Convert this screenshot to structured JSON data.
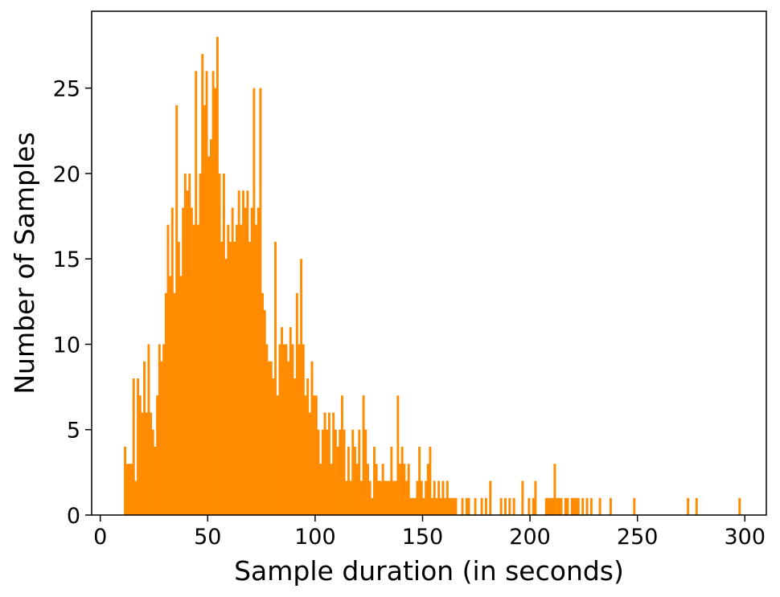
{
  "chart_data": {
    "type": "bar",
    "title": "",
    "xlabel": "Sample duration (in seconds)",
    "ylabel": "Number of Samples",
    "xlim": [
      -4,
      310
    ],
    "ylim": [
      0,
      29.5
    ],
    "xticks": [
      0,
      50,
      100,
      150,
      200,
      250,
      300
    ],
    "yticks": [
      0,
      5,
      10,
      15,
      20,
      25
    ],
    "bar_color": "#ff8c00",
    "bin_width": 1,
    "grid": false,
    "bins": [
      [
        11,
        4
      ],
      [
        12,
        3
      ],
      [
        13,
        3
      ],
      [
        14,
        3
      ],
      [
        15,
        8
      ],
      [
        16,
        2
      ],
      [
        17,
        8
      ],
      [
        18,
        7
      ],
      [
        19,
        6
      ],
      [
        20,
        9
      ],
      [
        21,
        6
      ],
      [
        22,
        10
      ],
      [
        23,
        6
      ],
      [
        24,
        5
      ],
      [
        25,
        4
      ],
      [
        26,
        7
      ],
      [
        27,
        10
      ],
      [
        28,
        9
      ],
      [
        29,
        10
      ],
      [
        30,
        13
      ],
      [
        31,
        17
      ],
      [
        32,
        14
      ],
      [
        33,
        18
      ],
      [
        34,
        13
      ],
      [
        35,
        24
      ],
      [
        36,
        16
      ],
      [
        37,
        14
      ],
      [
        38,
        18
      ],
      [
        39,
        20
      ],
      [
        40,
        19
      ],
      [
        41,
        20
      ],
      [
        42,
        18
      ],
      [
        43,
        17
      ],
      [
        44,
        26
      ],
      [
        45,
        17
      ],
      [
        46,
        20
      ],
      [
        47,
        27
      ],
      [
        48,
        24
      ],
      [
        49,
        26
      ],
      [
        50,
        21
      ],
      [
        51,
        22
      ],
      [
        52,
        26
      ],
      [
        53,
        25
      ],
      [
        54,
        28
      ],
      [
        55,
        20
      ],
      [
        56,
        16
      ],
      [
        57,
        20
      ],
      [
        58,
        15
      ],
      [
        59,
        17
      ],
      [
        60,
        16
      ],
      [
        61,
        18
      ],
      [
        62,
        16
      ],
      [
        63,
        17
      ],
      [
        64,
        19
      ],
      [
        65,
        17
      ],
      [
        66,
        19
      ],
      [
        67,
        18
      ],
      [
        68,
        19
      ],
      [
        69,
        16
      ],
      [
        70,
        18
      ],
      [
        71,
        25
      ],
      [
        72,
        17
      ],
      [
        73,
        18
      ],
      [
        74,
        25
      ],
      [
        75,
        13
      ],
      [
        76,
        12
      ],
      [
        77,
        10
      ],
      [
        78,
        9
      ],
      [
        79,
        9
      ],
      [
        80,
        8
      ],
      [
        81,
        16
      ],
      [
        82,
        7
      ],
      [
        83,
        10
      ],
      [
        84,
        11
      ],
      [
        85,
        10
      ],
      [
        86,
        10
      ],
      [
        87,
        9
      ],
      [
        88,
        11
      ],
      [
        89,
        10
      ],
      [
        90,
        8
      ],
      [
        91,
        13
      ],
      [
        92,
        10
      ],
      [
        93,
        15
      ],
      [
        94,
        10
      ],
      [
        95,
        7
      ],
      [
        96,
        8
      ],
      [
        97,
        6
      ],
      [
        98,
        9
      ],
      [
        99,
        7
      ],
      [
        100,
        7
      ],
      [
        101,
        5
      ],
      [
        102,
        3
      ],
      [
        103,
        5
      ],
      [
        104,
        6
      ],
      [
        105,
        5
      ],
      [
        106,
        6
      ],
      [
        107,
        3
      ],
      [
        108,
        6
      ],
      [
        109,
        5
      ],
      [
        110,
        4
      ],
      [
        111,
        5
      ],
      [
        112,
        7
      ],
      [
        113,
        5
      ],
      [
        114,
        2
      ],
      [
        115,
        4
      ],
      [
        116,
        2
      ],
      [
        117,
        5
      ],
      [
        118,
        4
      ],
      [
        119,
        3
      ],
      [
        120,
        5
      ],
      [
        121,
        2
      ],
      [
        122,
        7
      ],
      [
        123,
        5
      ],
      [
        124,
        3
      ],
      [
        125,
        2
      ],
      [
        126,
        1
      ],
      [
        127,
        4
      ],
      [
        128,
        3
      ],
      [
        129,
        2
      ],
      [
        130,
        2
      ],
      [
        131,
        3
      ],
      [
        132,
        2
      ],
      [
        133,
        2
      ],
      [
        134,
        2
      ],
      [
        135,
        4
      ],
      [
        136,
        2
      ],
      [
        137,
        2
      ],
      [
        138,
        7
      ],
      [
        139,
        3
      ],
      [
        140,
        4
      ],
      [
        141,
        3
      ],
      [
        142,
        2
      ],
      [
        143,
        3
      ],
      [
        144,
        1
      ],
      [
        145,
        1
      ],
      [
        146,
        1
      ],
      [
        147,
        2
      ],
      [
        148,
        4
      ],
      [
        149,
        2
      ],
      [
        150,
        1
      ],
      [
        151,
        2
      ],
      [
        152,
        3
      ],
      [
        153,
        4
      ],
      [
        154,
        1
      ],
      [
        155,
        2
      ],
      [
        156,
        1
      ],
      [
        157,
        2
      ],
      [
        158,
        1
      ],
      [
        159,
        2
      ],
      [
        160,
        1
      ],
      [
        161,
        2
      ],
      [
        162,
        1
      ],
      [
        163,
        1
      ],
      [
        164,
        1
      ],
      [
        165,
        1
      ],
      [
        168,
        1
      ],
      [
        170,
        1
      ],
      [
        171,
        1
      ],
      [
        174,
        1
      ],
      [
        177,
        1
      ],
      [
        179,
        1
      ],
      [
        181,
        2
      ],
      [
        186,
        1
      ],
      [
        188,
        1
      ],
      [
        190,
        1
      ],
      [
        192,
        1
      ],
      [
        196,
        2
      ],
      [
        199,
        1
      ],
      [
        201,
        1
      ],
      [
        202,
        2
      ],
      [
        207,
        1
      ],
      [
        208,
        1
      ],
      [
        209,
        1
      ],
      [
        210,
        1
      ],
      [
        211,
        3
      ],
      [
        212,
        1
      ],
      [
        213,
        1
      ],
      [
        214,
        1
      ],
      [
        216,
        1
      ],
      [
        217,
        1
      ],
      [
        219,
        1
      ],
      [
        220,
        1
      ],
      [
        221,
        1
      ],
      [
        222,
        1
      ],
      [
        224,
        1
      ],
      [
        226,
        1
      ],
      [
        228,
        1
      ],
      [
        232,
        1
      ],
      [
        237,
        1
      ],
      [
        248,
        1
      ],
      [
        273,
        1
      ],
      [
        277,
        1
      ],
      [
        297,
        1
      ]
    ]
  }
}
